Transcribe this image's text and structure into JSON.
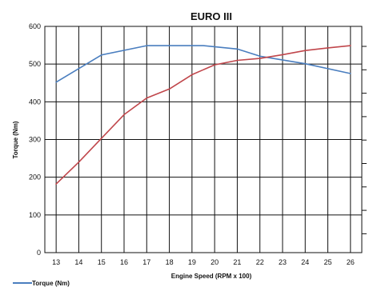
{
  "chart_data": {
    "type": "line",
    "title": "EURO III",
    "xlabel": "Engine Speed (RPM x 100)",
    "ylabel": "Torque (Nm)",
    "x": [
      13,
      14,
      15,
      16,
      17,
      18,
      19,
      20,
      21,
      22,
      23,
      24,
      25,
      26
    ],
    "xlim": [
      12.5,
      26.5
    ],
    "ylim": [
      0,
      600
    ],
    "yticks": [
      0,
      100,
      200,
      300,
      400,
      500,
      600
    ],
    "grid": true,
    "legend_position": "bottom-left",
    "series": [
      {
        "name": "Torque (Nm)",
        "color": "#4a7ebf",
        "x": [
          13,
          15,
          17,
          18,
          19.5,
          21,
          22,
          24,
          26
        ],
        "values": [
          452,
          524,
          549,
          549,
          549,
          540,
          521,
          501,
          475
        ]
      },
      {
        "name": "",
        "color": "#c0464b",
        "x": [
          13,
          14,
          15,
          16,
          17,
          18,
          19,
          20,
          21,
          22,
          23,
          24,
          25,
          26
        ],
        "values": [
          182,
          240,
          303,
          366,
          410,
          434,
          472,
          498,
          510,
          515,
          525,
          536,
          543,
          549
        ]
      }
    ]
  }
}
